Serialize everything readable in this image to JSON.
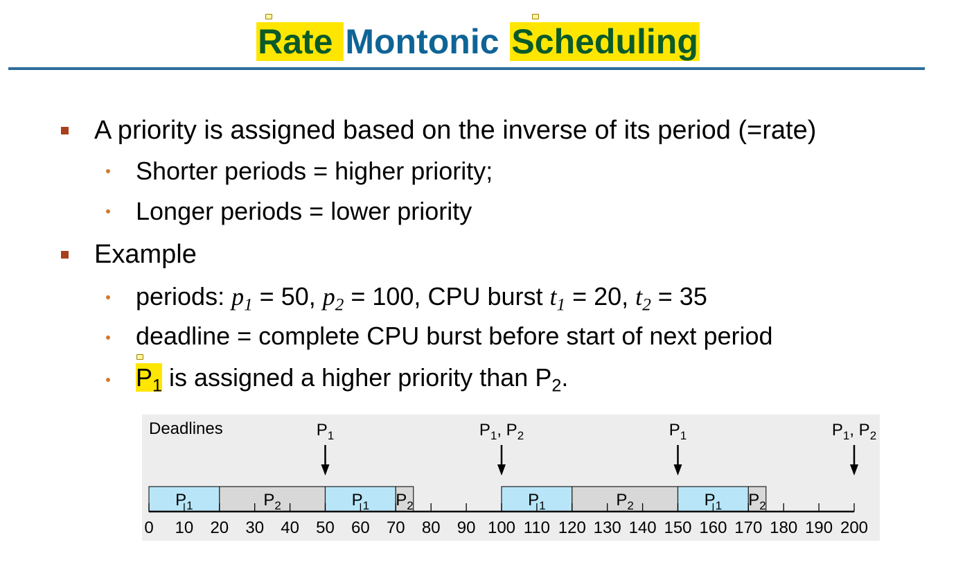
{
  "title": {
    "word1": "Rate ",
    "word2": "Montonic ",
    "word3": "Scheduling"
  },
  "bullets": [
    {
      "text": "A priority is assigned based on the inverse of its period (=rate)",
      "subs": [
        "Shorter periods = higher priority;",
        "Longer periods = lower priority"
      ]
    },
    {
      "text": "Example"
    }
  ],
  "example": {
    "periods_label": "periods: ",
    "p1": "p",
    "p1_sub": "1",
    "p1_val": " = 50, ",
    "p2": "p",
    "p2_sub": "2",
    "p2_val": " = 100, CPU burst ",
    "t1": "t",
    "t1_sub": "1",
    "t1_val": " = 20, ",
    "t2": "t",
    "t2_sub": "2",
    "t2_val": " = 35",
    "deadline_line": "deadline = complete CPU burst before start of next period",
    "priority_p": "P",
    "priority_sub": "1",
    "priority_rest": " is assigned a higher priority than P",
    "priority_sub2": "2",
    "priority_end": "."
  },
  "chart_data": {
    "type": "gantt",
    "deadlines_label": "Deadlines",
    "deadlines": [
      {
        "time": 50,
        "label": "P",
        "subs": [
          "1"
        ]
      },
      {
        "time": 100,
        "label": "P",
        "subs": [
          "1",
          "2"
        ]
      },
      {
        "time": 150,
        "label": "P",
        "subs": [
          "1"
        ]
      },
      {
        "time": 200,
        "label": "P",
        "subs": [
          "1",
          "2"
        ]
      }
    ],
    "segments": [
      {
        "start": 0,
        "end": 20,
        "process": "P",
        "sub": "1",
        "color": "#b8e6f8"
      },
      {
        "start": 20,
        "end": 50,
        "process": "P",
        "sub": "2",
        "color": "#d8d8d8"
      },
      {
        "start": 50,
        "end": 70,
        "process": "P",
        "sub": "1",
        "color": "#b8e6f8"
      },
      {
        "start": 70,
        "end": 75,
        "process": "P",
        "sub": "2",
        "color": "#d8d8d8"
      },
      {
        "start": 100,
        "end": 120,
        "process": "P",
        "sub": "1",
        "color": "#b8e6f8"
      },
      {
        "start": 120,
        "end": 150,
        "process": "P",
        "sub": "2",
        "color": "#d8d8d8"
      },
      {
        "start": 150,
        "end": 170,
        "process": "P",
        "sub": "1",
        "color": "#b8e6f8"
      },
      {
        "start": 170,
        "end": 175,
        "process": "P",
        "sub": "2",
        "color": "#d8d8d8"
      }
    ],
    "x_ticks": [
      0,
      10,
      20,
      30,
      40,
      50,
      60,
      70,
      80,
      90,
      100,
      110,
      120,
      130,
      140,
      150,
      160,
      170,
      180,
      190,
      200
    ],
    "xlim": [
      0,
      200
    ]
  }
}
